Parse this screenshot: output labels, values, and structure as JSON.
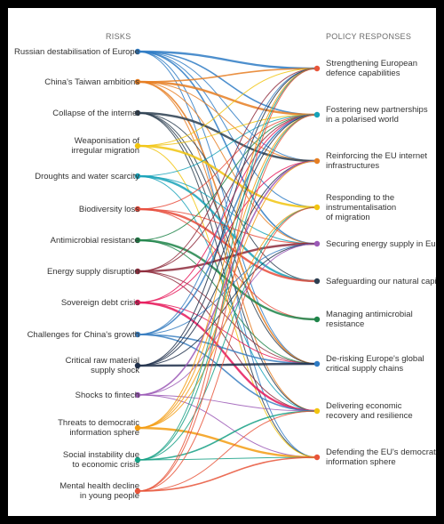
{
  "headers": {
    "risks": "RISKS",
    "responses": "POLICY RESPONSES"
  },
  "risks": [
    {
      "label": "Russian destabilisation of Europe",
      "color": "#2e7bc4"
    },
    {
      "label": "China's Taiwan ambitions",
      "color": "#e67e22"
    },
    {
      "label": "Collapse of the internet",
      "color": "#2c3e50"
    },
    {
      "label": "Weaponisation of\nirregular migration",
      "color": "#f1c40f"
    },
    {
      "label": "Droughts and water scarcity",
      "color": "#17a2b8"
    },
    {
      "label": "Biodiversity loss",
      "color": "#e74c3c"
    },
    {
      "label": "Antimicrobial resistance",
      "color": "#1e8449"
    },
    {
      "label": "Energy supply disruption",
      "color": "#8e2c3c"
    },
    {
      "label": "Sovereign debt crisis",
      "color": "#e6195b"
    },
    {
      "label": "Challenges for China's growth",
      "color": "#3a7fc1"
    },
    {
      "label": "Critical raw material\nsupply shock",
      "color": "#1f2f4a"
    },
    {
      "label": "Shocks to fintech",
      "color": "#9b59b6"
    },
    {
      "label": "Threats to democratic\ninformation sphere",
      "color": "#f39c12"
    },
    {
      "label": "Social instability due\nto economic crisis",
      "color": "#16a085"
    },
    {
      "label": "Mental health decline\nin young people",
      "color": "#e8553a"
    }
  ],
  "responses": [
    {
      "label": "Strengthening European\ndefence capabilities",
      "color": "#e8553a"
    },
    {
      "label": "Fostering new partnerships\nin a polarised world",
      "color": "#17a2b8"
    },
    {
      "label": "Reinforcing the EU internet\ninfrastructures",
      "color": "#e67e22"
    },
    {
      "label": "Responding to the\ninstrumentalisation\nof migration",
      "color": "#f1c40f"
    },
    {
      "label": "Securing energy supply in Europe",
      "color": "#9b59b6"
    },
    {
      "label": "Safeguarding our natural capital",
      "color": "#2c3e50"
    },
    {
      "label": "Managing antimicrobial\nresistance",
      "color": "#1e8449"
    },
    {
      "label": "De-risking Europe's global\ncritical supply chains",
      "color": "#2e7bc4"
    },
    {
      "label": "Delivering economic\nrecovery and resilience",
      "color": "#f1c40f"
    },
    {
      "label": "Defending the EU's democratic\ninformation sphere",
      "color": "#e8553a"
    }
  ],
  "links": [
    [
      0,
      0,
      3
    ],
    [
      0,
      1,
      2
    ],
    [
      0,
      2,
      1
    ],
    [
      0,
      3,
      1
    ],
    [
      0,
      4,
      2
    ],
    [
      0,
      7,
      1
    ],
    [
      0,
      9,
      1
    ],
    [
      1,
      0,
      2
    ],
    [
      1,
      1,
      3
    ],
    [
      1,
      2,
      1
    ],
    [
      1,
      4,
      1
    ],
    [
      1,
      7,
      2
    ],
    [
      1,
      8,
      1
    ],
    [
      2,
      2,
      3
    ],
    [
      2,
      7,
      1
    ],
    [
      2,
      8,
      1
    ],
    [
      2,
      5,
      1
    ],
    [
      2,
      9,
      1
    ],
    [
      3,
      3,
      3
    ],
    [
      3,
      1,
      1
    ],
    [
      3,
      0,
      1
    ],
    [
      3,
      9,
      1
    ],
    [
      4,
      5,
      3
    ],
    [
      4,
      4,
      1
    ],
    [
      4,
      1,
      1
    ],
    [
      4,
      8,
      1
    ],
    [
      5,
      5,
      3
    ],
    [
      5,
      6,
      1
    ],
    [
      5,
      1,
      1
    ],
    [
      5,
      4,
      1
    ],
    [
      6,
      6,
      3
    ],
    [
      6,
      1,
      1
    ],
    [
      6,
      7,
      1
    ],
    [
      7,
      4,
      3
    ],
    [
      7,
      0,
      1
    ],
    [
      7,
      1,
      1
    ],
    [
      7,
      7,
      1
    ],
    [
      7,
      8,
      1
    ],
    [
      8,
      8,
      3
    ],
    [
      8,
      1,
      1
    ],
    [
      8,
      2,
      1
    ],
    [
      8,
      7,
      1
    ],
    [
      9,
      1,
      2
    ],
    [
      9,
      7,
      2
    ],
    [
      9,
      8,
      2
    ],
    [
      9,
      0,
      1
    ],
    [
      9,
      4,
      1
    ],
    [
      10,
      7,
      3
    ],
    [
      10,
      0,
      1
    ],
    [
      10,
      4,
      1
    ],
    [
      10,
      2,
      1
    ],
    [
      10,
      1,
      1
    ],
    [
      11,
      2,
      2
    ],
    [
      11,
      8,
      1
    ],
    [
      11,
      9,
      1
    ],
    [
      11,
      4,
      1
    ],
    [
      12,
      9,
      3
    ],
    [
      12,
      3,
      1
    ],
    [
      12,
      1,
      1
    ],
    [
      12,
      2,
      1
    ],
    [
      12,
      0,
      1
    ],
    [
      13,
      8,
      2
    ],
    [
      13,
      3,
      1
    ],
    [
      13,
      9,
      1
    ],
    [
      13,
      0,
      1
    ],
    [
      13,
      1,
      1
    ],
    [
      14,
      9,
      2
    ],
    [
      14,
      1,
      1
    ],
    [
      14,
      8,
      1
    ],
    [
      14,
      0,
      1
    ],
    [
      14,
      3,
      1
    ]
  ]
}
